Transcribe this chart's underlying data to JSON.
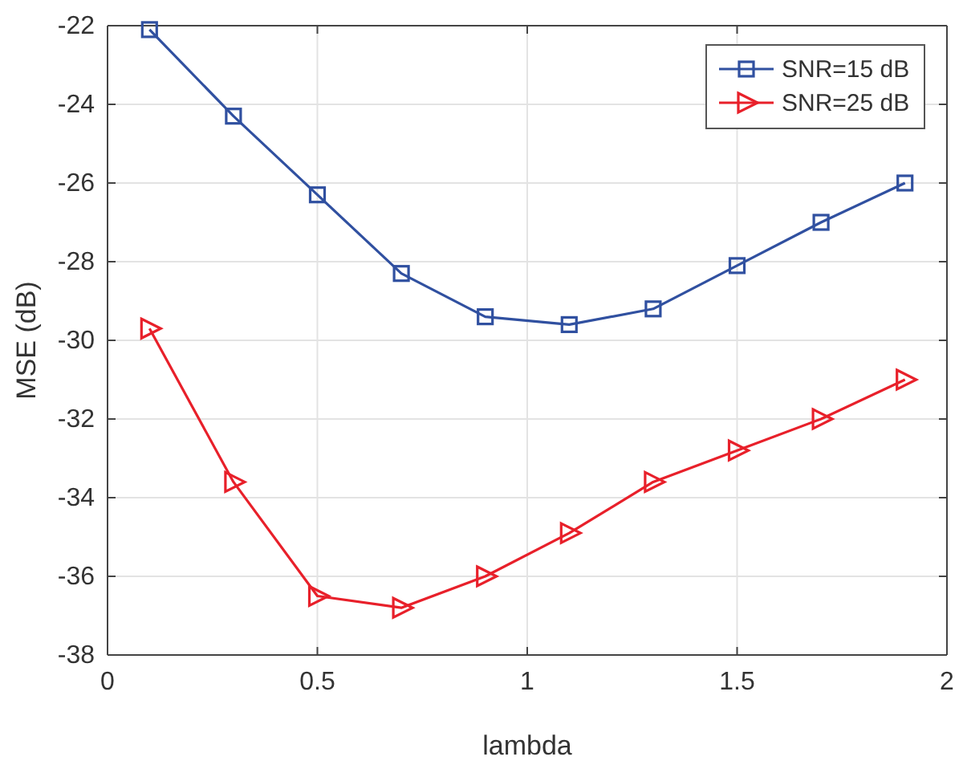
{
  "chart_data": {
    "type": "line",
    "xlabel": "lambda",
    "ylabel": "MSE (dB)",
    "x": [
      0.1,
      0.3,
      0.5,
      0.7,
      0.9,
      1.1,
      1.3,
      1.5,
      1.7,
      1.9
    ],
    "series": [
      {
        "name": "SNR=15 dB",
        "color": "#3050a0",
        "marker": "square",
        "values": [
          -22.1,
          -24.3,
          -26.3,
          -28.3,
          -29.4,
          -29.6,
          -29.2,
          -28.1,
          -27.0,
          -26.0
        ]
      },
      {
        "name": "SNR=25 dB",
        "color": "#e8202a",
        "marker": "triangle",
        "values": [
          -29.7,
          -33.6,
          -36.5,
          -36.8,
          -36.0,
          -34.9,
          -33.6,
          -32.8,
          -32.0,
          -31.0
        ]
      }
    ],
    "xlim": [
      0,
      2
    ],
    "xticks": [
      0,
      0.5,
      1,
      1.5,
      2
    ],
    "ylim": [
      -38,
      -22
    ],
    "yticks": [
      -38,
      -36,
      -34,
      -32,
      -30,
      -28,
      -26,
      -24,
      -22
    ],
    "grid": true,
    "legend": "top right",
    "line_style": "solid"
  }
}
